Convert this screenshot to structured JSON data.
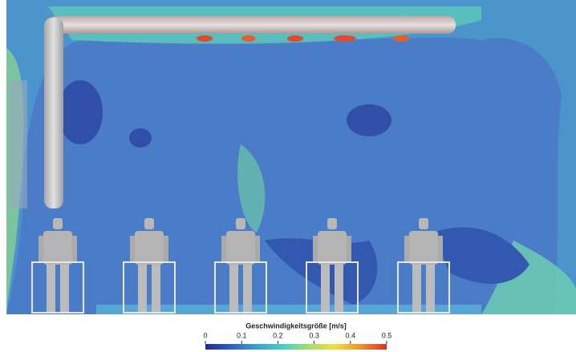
{
  "colorbar": {
    "title": "Geschwindigkeitsgröße [m/s]",
    "lim": [
      0,
      0.5
    ],
    "ticks": [
      0,
      0.1,
      0.2,
      0.3,
      0.4,
      0.5
    ],
    "colors": [
      "#1f2a9c",
      "#2f5fc8",
      "#3aa0d8",
      "#45d0c0",
      "#9fe070",
      "#f0e040",
      "#f09030",
      "#e03020"
    ]
  }
}
